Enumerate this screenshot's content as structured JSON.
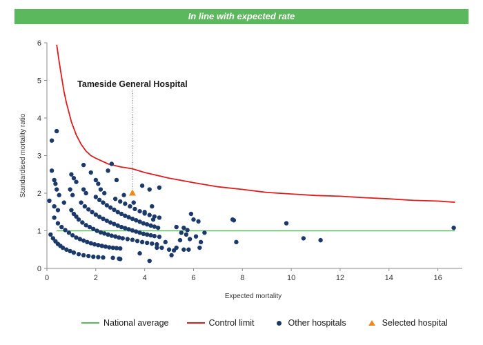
{
  "banner": {
    "text": "In line with expected rate",
    "color": "#5cb85c"
  },
  "legend": {
    "national_average": "National average",
    "control_limit": "Control limit",
    "other_hospitals": "Other hospitals",
    "selected_hospital": "Selected hospital"
  },
  "colors": {
    "national_average": "#5cb85c",
    "control_limit": "#e01b1b",
    "other_hospitals": "#1b3a6b",
    "selected_hospital": "#ee8a1c"
  },
  "chart_data": {
    "type": "scatter",
    "xlabel": "Expected mortality",
    "ylabel": "Standardised mortality ratio",
    "xlim": [
      0,
      17
    ],
    "ylim": [
      0,
      6
    ],
    "xticks": [
      0,
      2,
      4,
      6,
      8,
      10,
      12,
      14,
      16
    ],
    "yticks": [
      0,
      1,
      2,
      3,
      4,
      5,
      6
    ],
    "grid": false,
    "legend_position": "bottom",
    "national_average": {
      "y": 1,
      "x_range": [
        0.4,
        16.7
      ]
    },
    "control_limit": {
      "points": [
        [
          0.4,
          5.95
        ],
        [
          0.5,
          5.5
        ],
        [
          0.6,
          5.1
        ],
        [
          0.7,
          4.7
        ],
        [
          0.8,
          4.4
        ],
        [
          0.9,
          4.15
        ],
        [
          1.0,
          3.9
        ],
        [
          1.2,
          3.55
        ],
        [
          1.4,
          3.3
        ],
        [
          1.6,
          3.12
        ],
        [
          1.8,
          3.0
        ],
        [
          2.0,
          2.93
        ],
        [
          2.5,
          2.78
        ],
        [
          3.0,
          2.7
        ],
        [
          3.5,
          2.65
        ],
        [
          4.0,
          2.55
        ],
        [
          5.0,
          2.4
        ],
        [
          6.0,
          2.28
        ],
        [
          7.0,
          2.17
        ],
        [
          8.0,
          2.1
        ],
        [
          9.0,
          2.02
        ],
        [
          10.0,
          1.98
        ],
        [
          11.0,
          1.94
        ],
        [
          12.0,
          1.92
        ],
        [
          13.0,
          1.88
        ],
        [
          14.0,
          1.85
        ],
        [
          15.0,
          1.81
        ],
        [
          16.0,
          1.79
        ],
        [
          16.7,
          1.76
        ]
      ]
    },
    "selected_hospital": {
      "name": "Tameside General Hospital",
      "x": 3.5,
      "y": 2.0
    },
    "other_hospitals": [
      [
        0.2,
        3.4
      ],
      [
        0.4,
        3.65
      ],
      [
        0.2,
        2.6
      ],
      [
        0.3,
        2.35
      ],
      [
        0.35,
        2.25
      ],
      [
        0.4,
        2.1
      ],
      [
        0.5,
        1.95
      ],
      [
        0.7,
        1.75
      ],
      [
        0.3,
        1.65
      ],
      [
        0.45,
        1.55
      ],
      [
        0.1,
        1.8
      ],
      [
        1.0,
        2.5
      ],
      [
        1.1,
        2.4
      ],
      [
        1.2,
        2.3
      ],
      [
        0.95,
        2.1
      ],
      [
        1.05,
        1.95
      ],
      [
        1.5,
        2.1
      ],
      [
        1.6,
        2.0
      ],
      [
        1.5,
        2.75
      ],
      [
        1.8,
        2.55
      ],
      [
        2.0,
        2.35
      ],
      [
        2.1,
        2.25
      ],
      [
        2.2,
        2.1
      ],
      [
        2.35,
        2.0
      ],
      [
        2.5,
        2.6
      ],
      [
        2.65,
        2.78
      ],
      [
        2.85,
        2.35
      ],
      [
        3.15,
        1.95
      ],
      [
        3.55,
        1.75
      ],
      [
        3.9,
        2.2
      ],
      [
        4.2,
        2.1
      ],
      [
        4.6,
        2.15
      ],
      [
        4.3,
        1.65
      ],
      [
        4.0,
        1.5
      ],
      [
        4.35,
        1.3
      ],
      [
        0.15,
        0.9
      ],
      [
        0.25,
        0.8
      ],
      [
        0.35,
        0.72
      ],
      [
        0.45,
        0.65
      ],
      [
        0.55,
        0.6
      ],
      [
        0.65,
        0.55
      ],
      [
        0.8,
        0.5
      ],
      [
        0.95,
        0.46
      ],
      [
        1.1,
        0.42
      ],
      [
        1.3,
        0.38
      ],
      [
        1.5,
        0.35
      ],
      [
        1.7,
        0.33
      ],
      [
        1.9,
        0.31
      ],
      [
        2.1,
        0.3
      ],
      [
        2.3,
        0.29
      ],
      [
        2.7,
        0.28
      ],
      [
        2.95,
        0.26
      ],
      [
        0.3,
        1.35
      ],
      [
        0.45,
        1.2
      ],
      [
        0.6,
        1.1
      ],
      [
        0.75,
        1.02
      ],
      [
        0.9,
        0.95
      ],
      [
        1.05,
        0.88
      ],
      [
        1.2,
        0.82
      ],
      [
        1.35,
        0.78
      ],
      [
        1.5,
        0.74
      ],
      [
        1.65,
        0.7
      ],
      [
        1.8,
        0.67
      ],
      [
        1.95,
        0.64
      ],
      [
        2.1,
        0.62
      ],
      [
        2.25,
        0.6
      ],
      [
        2.4,
        0.58
      ],
      [
        2.55,
        0.56
      ],
      [
        2.7,
        0.55
      ],
      [
        2.85,
        0.54
      ],
      [
        3.0,
        0.53
      ],
      [
        1.0,
        1.55
      ],
      [
        1.1,
        1.45
      ],
      [
        1.2,
        1.38
      ],
      [
        1.3,
        1.3
      ],
      [
        1.45,
        1.22
      ],
      [
        1.6,
        1.15
      ],
      [
        1.75,
        1.1
      ],
      [
        1.9,
        1.05
      ],
      [
        2.05,
        1.0
      ],
      [
        2.2,
        0.96
      ],
      [
        2.35,
        0.93
      ],
      [
        2.5,
        0.9
      ],
      [
        2.65,
        0.87
      ],
      [
        2.8,
        0.85
      ],
      [
        2.95,
        0.82
      ],
      [
        3.1,
        0.8
      ],
      [
        3.3,
        0.78
      ],
      [
        3.5,
        0.76
      ],
      [
        3.7,
        0.73
      ],
      [
        3.9,
        0.7
      ],
      [
        4.1,
        0.68
      ],
      [
        4.3,
        0.66
      ],
      [
        4.5,
        0.64
      ],
      [
        1.4,
        1.75
      ],
      [
        1.55,
        1.65
      ],
      [
        1.7,
        1.57
      ],
      [
        1.85,
        1.5
      ],
      [
        2.0,
        1.43
      ],
      [
        2.15,
        1.37
      ],
      [
        2.3,
        1.32
      ],
      [
        2.45,
        1.27
      ],
      [
        2.6,
        1.22
      ],
      [
        2.75,
        1.18
      ],
      [
        2.9,
        1.14
      ],
      [
        3.05,
        1.1
      ],
      [
        3.2,
        1.07
      ],
      [
        3.35,
        1.04
      ],
      [
        3.5,
        1.01
      ],
      [
        3.65,
        0.98
      ],
      [
        3.8,
        0.95
      ],
      [
        3.95,
        0.92
      ],
      [
        4.1,
        0.9
      ],
      [
        4.25,
        0.88
      ],
      [
        4.4,
        0.86
      ],
      [
        4.6,
        0.84
      ],
      [
        2.0,
        1.9
      ],
      [
        2.15,
        1.82
      ],
      [
        2.3,
        1.75
      ],
      [
        2.45,
        1.68
      ],
      [
        2.6,
        1.62
      ],
      [
        2.75,
        1.56
      ],
      [
        2.9,
        1.5
      ],
      [
        3.05,
        1.45
      ],
      [
        3.2,
        1.4
      ],
      [
        3.35,
        1.36
      ],
      [
        3.5,
        1.32
      ],
      [
        3.65,
        1.28
      ],
      [
        3.8,
        1.24
      ],
      [
        3.95,
        1.2
      ],
      [
        4.1,
        1.17
      ],
      [
        4.25,
        1.14
      ],
      [
        4.4,
        1.11
      ],
      [
        4.55,
        1.08
      ],
      [
        2.8,
        1.85
      ],
      [
        3.0,
        1.78
      ],
      [
        3.2,
        1.72
      ],
      [
        3.4,
        1.65
      ],
      [
        3.6,
        1.58
      ],
      [
        3.8,
        1.52
      ],
      [
        4.0,
        1.46
      ],
      [
        4.2,
        1.42
      ],
      [
        4.4,
        1.38
      ],
      [
        4.6,
        1.35
      ],
      [
        3.0,
        0.25
      ],
      [
        3.8,
        0.4
      ],
      [
        4.2,
        0.2
      ],
      [
        4.5,
        0.55
      ],
      [
        4.7,
        0.55
      ],
      [
        4.85,
        0.7
      ],
      [
        5.0,
        0.5
      ],
      [
        5.1,
        0.35
      ],
      [
        5.2,
        0.48
      ],
      [
        5.3,
        0.55
      ],
      [
        5.45,
        0.75
      ],
      [
        5.3,
        1.1
      ],
      [
        5.5,
        0.95
      ],
      [
        5.6,
        1.08
      ],
      [
        5.7,
        0.9
      ],
      [
        5.75,
        1.02
      ],
      [
        5.85,
        0.78
      ],
      [
        5.9,
        1.45
      ],
      [
        6.0,
        1.3
      ],
      [
        6.1,
        0.85
      ],
      [
        6.2,
        1.25
      ],
      [
        6.25,
        0.55
      ],
      [
        6.3,
        0.7
      ],
      [
        6.45,
        0.95
      ],
      [
        5.6,
        0.5
      ],
      [
        5.8,
        0.5
      ],
      [
        7.6,
        1.3
      ],
      [
        7.65,
        1.28
      ],
      [
        7.75,
        0.7
      ],
      [
        9.8,
        1.2
      ],
      [
        10.5,
        0.8
      ],
      [
        11.2,
        0.75
      ],
      [
        16.65,
        1.08
      ]
    ]
  }
}
